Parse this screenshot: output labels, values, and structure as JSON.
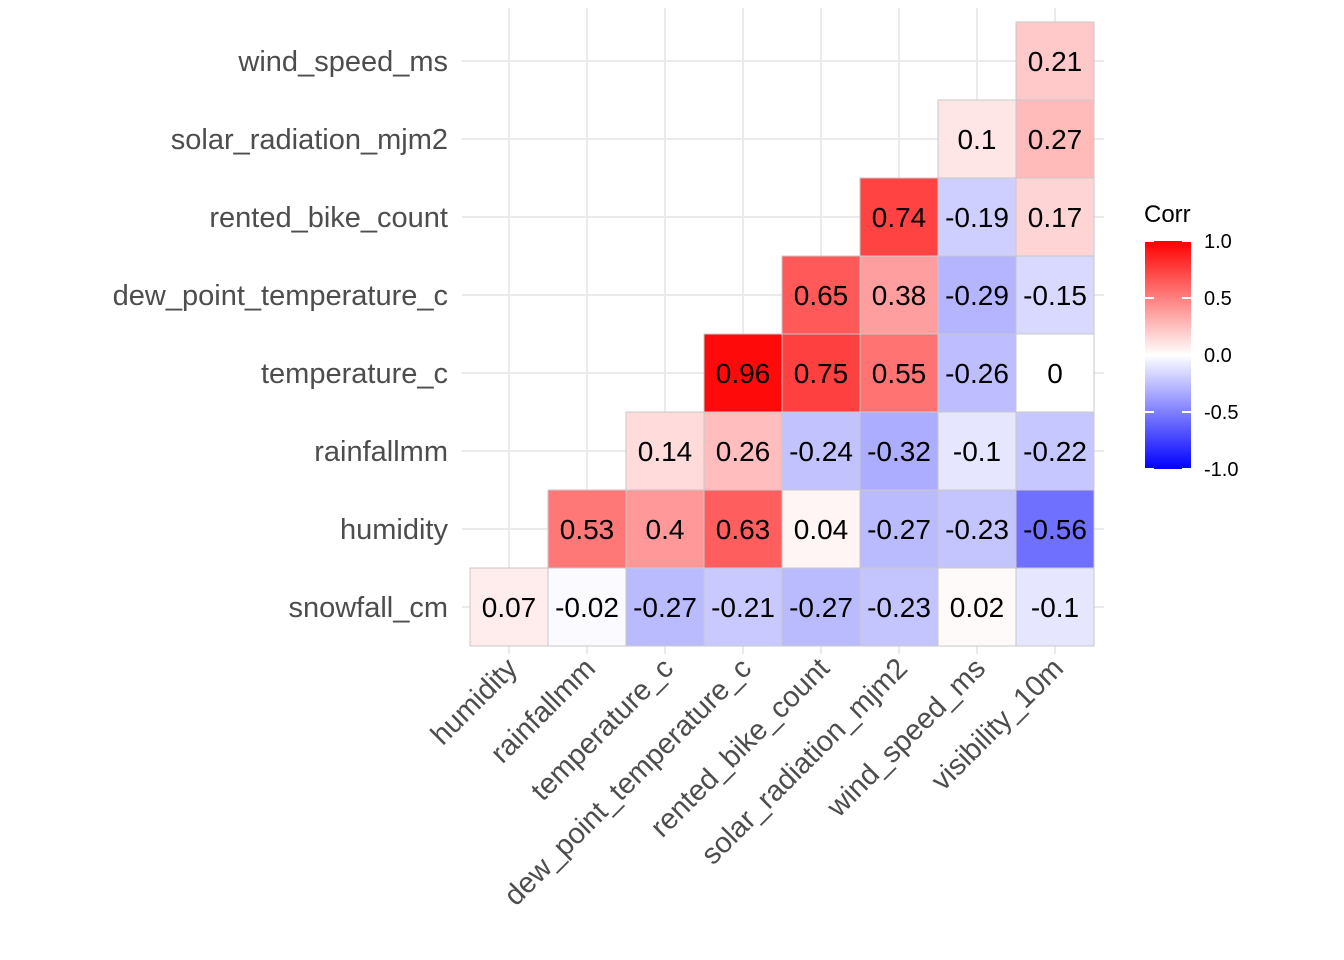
{
  "chart_data": {
    "type": "heatmap",
    "title": "",
    "x_labels": [
      "humidity",
      "rainfallmm",
      "temperature_c",
      "dew_point_temperature_c",
      "rented_bike_count",
      "solar_radiation_mjm2",
      "wind_speed_ms",
      "visibility_10m"
    ],
    "y_labels": [
      "snowfall_cm",
      "humidity",
      "rainfallmm",
      "temperature_c",
      "dew_point_temperature_c",
      "rented_bike_count",
      "solar_radiation_mjm2",
      "wind_speed_ms"
    ],
    "cells": [
      {
        "row": "snowfall_cm",
        "col": "humidity",
        "value": 0.07,
        "label": "0.07"
      },
      {
        "row": "snowfall_cm",
        "col": "rainfallmm",
        "value": -0.02,
        "label": "-0.02"
      },
      {
        "row": "snowfall_cm",
        "col": "temperature_c",
        "value": -0.27,
        "label": "-0.27"
      },
      {
        "row": "snowfall_cm",
        "col": "dew_point_temperature_c",
        "value": -0.21,
        "label": "-0.21"
      },
      {
        "row": "snowfall_cm",
        "col": "rented_bike_count",
        "value": -0.27,
        "label": "-0.27"
      },
      {
        "row": "snowfall_cm",
        "col": "solar_radiation_mjm2",
        "value": -0.23,
        "label": "-0.23"
      },
      {
        "row": "snowfall_cm",
        "col": "wind_speed_ms",
        "value": 0.02,
        "label": "0.02"
      },
      {
        "row": "snowfall_cm",
        "col": "visibility_10m",
        "value": -0.1,
        "label": "-0.1"
      },
      {
        "row": "humidity",
        "col": "rainfallmm",
        "value": 0.53,
        "label": "0.53"
      },
      {
        "row": "humidity",
        "col": "temperature_c",
        "value": 0.4,
        "label": "0.4"
      },
      {
        "row": "humidity",
        "col": "dew_point_temperature_c",
        "value": 0.63,
        "label": "0.63"
      },
      {
        "row": "humidity",
        "col": "rented_bike_count",
        "value": 0.04,
        "label": "0.04"
      },
      {
        "row": "humidity",
        "col": "solar_radiation_mjm2",
        "value": -0.27,
        "label": "-0.27"
      },
      {
        "row": "humidity",
        "col": "wind_speed_ms",
        "value": -0.23,
        "label": "-0.23"
      },
      {
        "row": "humidity",
        "col": "visibility_10m",
        "value": -0.56,
        "label": "-0.56"
      },
      {
        "row": "rainfallmm",
        "col": "temperature_c",
        "value": 0.14,
        "label": "0.14"
      },
      {
        "row": "rainfallmm",
        "col": "dew_point_temperature_c",
        "value": 0.26,
        "label": "0.26"
      },
      {
        "row": "rainfallmm",
        "col": "rented_bike_count",
        "value": -0.24,
        "label": "-0.24"
      },
      {
        "row": "rainfallmm",
        "col": "solar_radiation_mjm2",
        "value": -0.32,
        "label": "-0.32"
      },
      {
        "row": "rainfallmm",
        "col": "wind_speed_ms",
        "value": -0.1,
        "label": "-0.1"
      },
      {
        "row": "rainfallmm",
        "col": "visibility_10m",
        "value": -0.22,
        "label": "-0.22"
      },
      {
        "row": "temperature_c",
        "col": "dew_point_temperature_c",
        "value": 0.96,
        "label": "0.96"
      },
      {
        "row": "temperature_c",
        "col": "rented_bike_count",
        "value": 0.75,
        "label": "0.75"
      },
      {
        "row": "temperature_c",
        "col": "solar_radiation_mjm2",
        "value": 0.55,
        "label": "0.55"
      },
      {
        "row": "temperature_c",
        "col": "wind_speed_ms",
        "value": -0.26,
        "label": "-0.26"
      },
      {
        "row": "temperature_c",
        "col": "visibility_10m",
        "value": 0,
        "label": "0"
      },
      {
        "row": "dew_point_temperature_c",
        "col": "rented_bike_count",
        "value": 0.65,
        "label": "0.65"
      },
      {
        "row": "dew_point_temperature_c",
        "col": "solar_radiation_mjm2",
        "value": 0.38,
        "label": "0.38"
      },
      {
        "row": "dew_point_temperature_c",
        "col": "wind_speed_ms",
        "value": -0.29,
        "label": "-0.29"
      },
      {
        "row": "dew_point_temperature_c",
        "col": "visibility_10m",
        "value": -0.15,
        "label": "-0.15"
      },
      {
        "row": "rented_bike_count",
        "col": "solar_radiation_mjm2",
        "value": 0.74,
        "label": "0.74"
      },
      {
        "row": "rented_bike_count",
        "col": "wind_speed_ms",
        "value": -0.19,
        "label": "-0.19"
      },
      {
        "row": "rented_bike_count",
        "col": "visibility_10m",
        "value": 0.17,
        "label": "0.17"
      },
      {
        "row": "solar_radiation_mjm2",
        "col": "wind_speed_ms",
        "value": 0.1,
        "label": "0.1"
      },
      {
        "row": "solar_radiation_mjm2",
        "col": "visibility_10m",
        "value": 0.27,
        "label": "0.27"
      },
      {
        "row": "wind_speed_ms",
        "col": "visibility_10m",
        "value": 0.21,
        "label": "0.21"
      }
    ],
    "legend": {
      "title": "Corr",
      "position": "right",
      "range": [
        -1,
        1
      ],
      "ticks": [
        "1.0",
        "0.5",
        "0.0",
        "-0.5",
        "-1.0"
      ],
      "tick_values": [
        1,
        0.5,
        0,
        -0.5,
        -1
      ],
      "low_color": "#0000ff",
      "mid_color": "#ffffff",
      "high_color": "#ff0000"
    },
    "grid": true,
    "background_color": "#ffffff",
    "grid_color": "#ebebeb",
    "cell_border_color": "#c8c8c8"
  }
}
